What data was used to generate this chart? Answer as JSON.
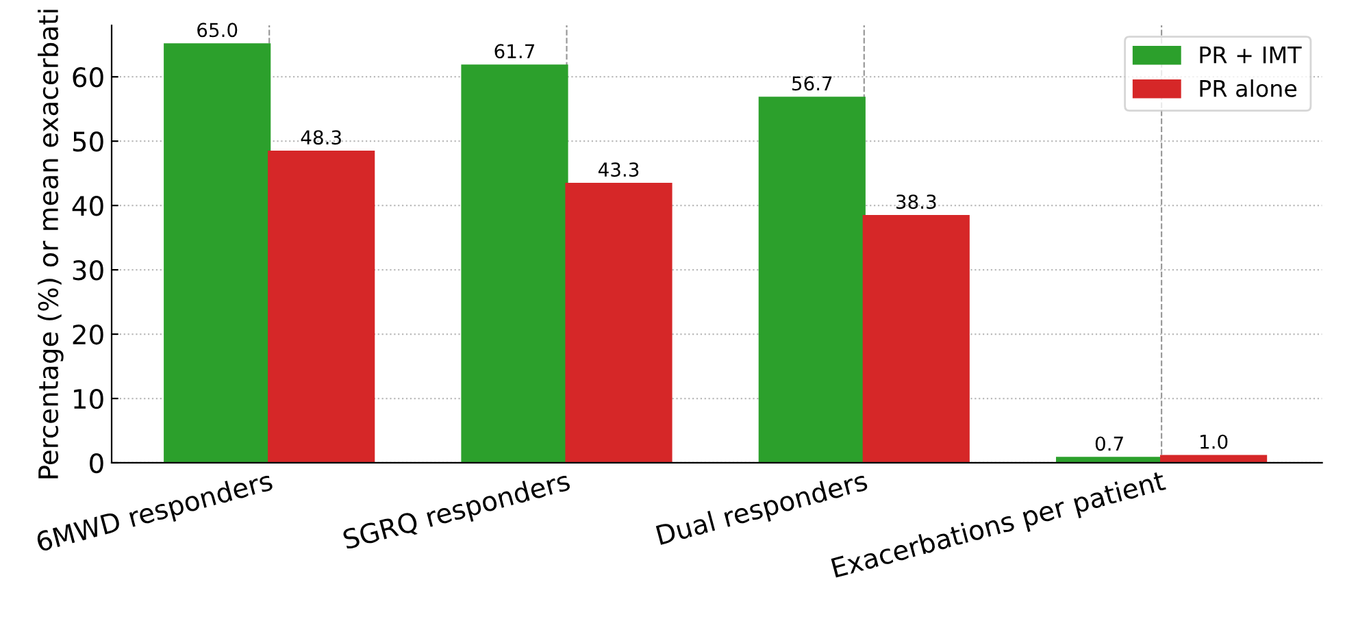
{
  "chart_data": {
    "type": "bar",
    "ylabel": "Percentage (%) or mean exacerbati",
    "categories": [
      "6MWD responders",
      "SGRQ responders",
      "Dual responders",
      "Exacerbations per patient"
    ],
    "series": [
      {
        "name": "PR + IMT",
        "color": "#2ca02c",
        "values": [
          65.0,
          61.7,
          56.7,
          0.7
        ],
        "value_labels": [
          "65.0",
          "61.7",
          "56.7",
          "0.7"
        ]
      },
      {
        "name": "PR alone",
        "color": "#d62728",
        "values": [
          48.3,
          43.3,
          38.3,
          1.0
        ],
        "value_labels": [
          "48.3",
          "43.3",
          "38.3",
          "1.0"
        ]
      }
    ],
    "ylim": [
      0,
      68
    ],
    "yticks": [
      0,
      10,
      20,
      30,
      40,
      50,
      60
    ],
    "grid": true,
    "legend": "top right"
  }
}
